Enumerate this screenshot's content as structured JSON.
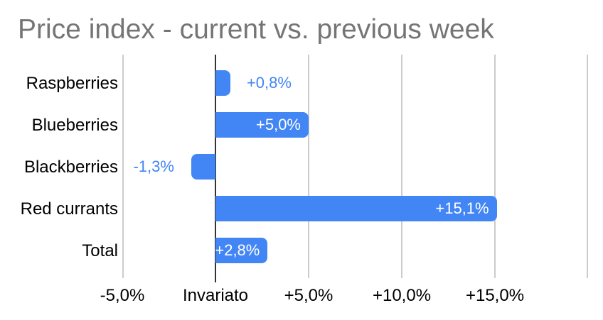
{
  "chart_data": {
    "type": "bar",
    "orientation": "horizontal",
    "title": "Price index - current vs. previous week",
    "categories": [
      "Raspberries",
      "Blueberries",
      "Blackberries",
      "Red currants",
      "Total"
    ],
    "values": [
      0.8,
      5.0,
      -1.3,
      15.1,
      2.8
    ],
    "value_labels": [
      "+0,8%",
      "+5,0%",
      "-1,3%",
      "+15,1%",
      "+2,8%"
    ],
    "value_label_placement": [
      "outside",
      "inside",
      "outside",
      "inside",
      "inside"
    ],
    "x_ticks": [
      {
        "value": -5,
        "label": "-5,0%"
      },
      {
        "value": 0,
        "label": "Invariato"
      },
      {
        "value": 5,
        "label": "+5,0%"
      },
      {
        "value": 10,
        "label": "+10,0%"
      },
      {
        "value": 15,
        "label": "+15,0%"
      }
    ],
    "grid_values": [
      -5,
      0,
      5,
      10,
      15,
      20
    ],
    "xlim": [
      -5,
      20
    ],
    "grid": true,
    "legend": "none",
    "ylabel": "",
    "xlabel": "",
    "colors": {
      "bar": "#4285F4",
      "value_label_inside": "#FFFFFF",
      "value_label_outside": "#4285F4",
      "title": "#757575",
      "category_label": "#000000",
      "axis_label": "#000000",
      "gridline": "#CCCCCC",
      "zero_line": "#333333",
      "background": "#FFFFFF"
    }
  }
}
